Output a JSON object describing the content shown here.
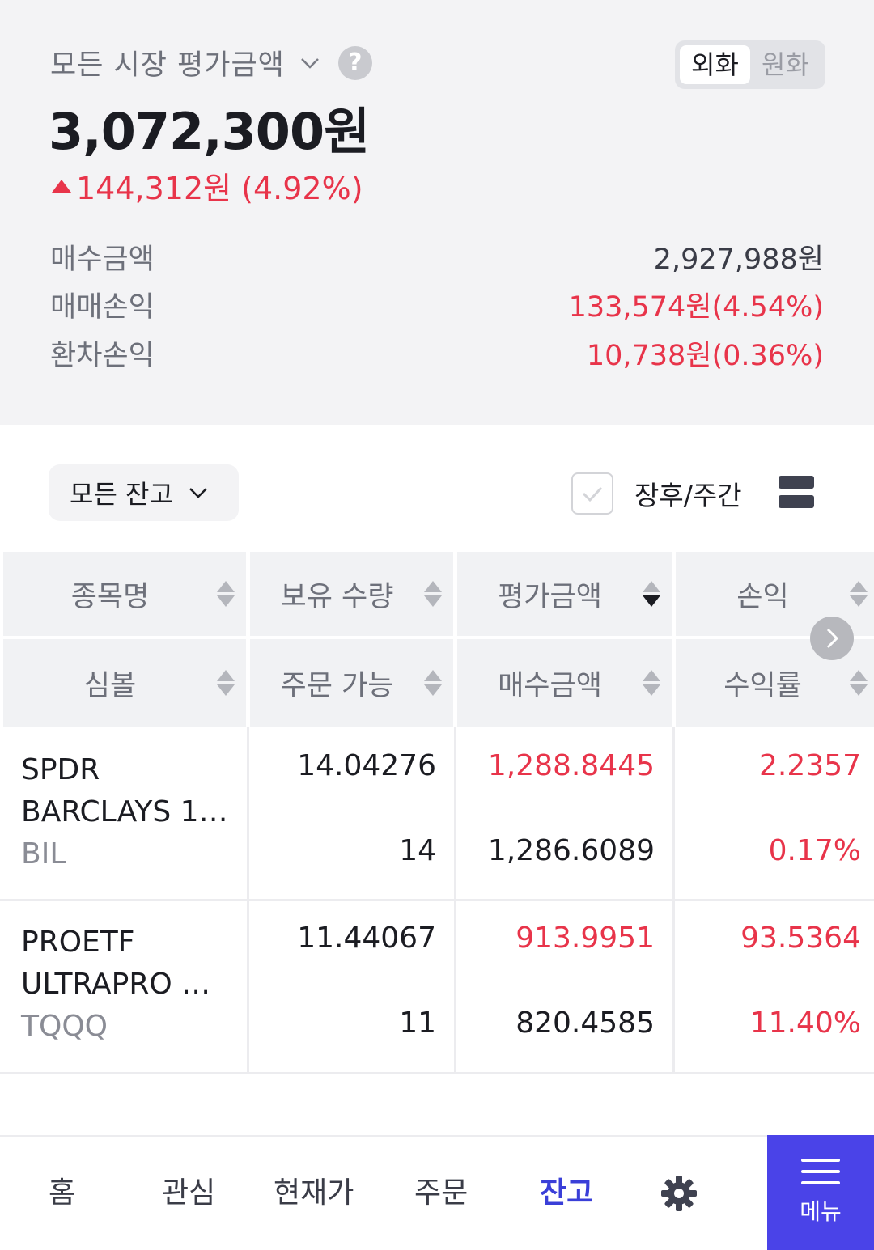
{
  "summary": {
    "market_label": "모든 시장 평가금액",
    "currency_toggle": {
      "foreign": "외화",
      "won": "원화",
      "selected": "외화"
    },
    "total_value": "3,072,300원",
    "change_text": "144,312원 (4.92%)",
    "rows": [
      {
        "label": "매수금액",
        "value": "2,927,988원"
      },
      {
        "label": "매매손익",
        "value": "133,574원(4.54%)"
      },
      {
        "label": "환차손익",
        "value": "10,738원(0.36%)"
      }
    ]
  },
  "filters": {
    "balance_filter": "모든 잔고",
    "extended_hours_label": "장후/주간",
    "extended_hours_checked": false
  },
  "table": {
    "header_row1": [
      "종목명",
      "보유 수량",
      "평가금액",
      "손익"
    ],
    "header_row2": [
      "심볼",
      "주문 가능",
      "매수금액",
      "수익률"
    ],
    "sorted_column": "평가금액",
    "rows": [
      {
        "name_line1": "SPDR",
        "name_line2": "BARCLAYS 1…",
        "symbol": "BIL",
        "quantity": "14.04276",
        "orderable": "14",
        "eval_amount": "1,288.8445",
        "buy_amount": "1,286.6089",
        "profit": "2.2357",
        "return_rate": "0.17%"
      },
      {
        "name_line1": "PROETF",
        "name_line2": "ULTRAPRO …",
        "symbol": "TQQQ",
        "quantity": "11.44067",
        "orderable": "11",
        "eval_amount": "913.9951",
        "buy_amount": "820.4585",
        "profit": "93.5364",
        "return_rate": "11.40%"
      }
    ]
  },
  "nav": {
    "items": [
      "홈",
      "관심",
      "현재가",
      "주문",
      "잔고"
    ],
    "active": "잔고",
    "menu_label": "메뉴"
  },
  "colors": {
    "up": "#e8344a",
    "accent": "#4a43e8",
    "active_nav": "#3a3fd8"
  }
}
